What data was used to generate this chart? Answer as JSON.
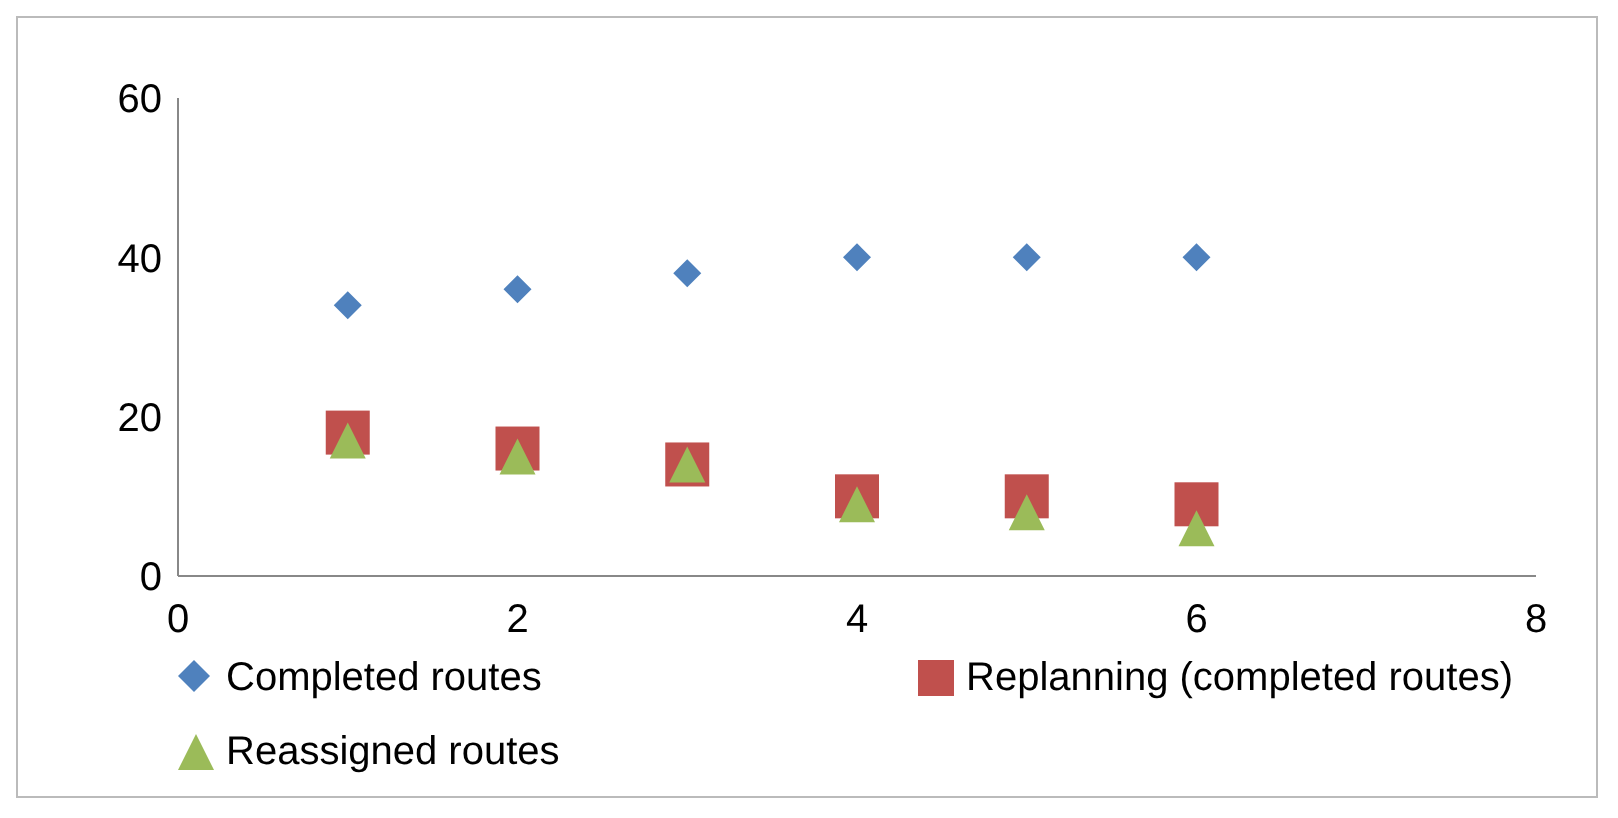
{
  "chart_data": {
    "type": "scatter",
    "x": [
      1,
      2,
      3,
      4,
      5,
      6
    ],
    "series": [
      {
        "name": "Completed routes",
        "color": "#4f81bd",
        "marker": "diamond",
        "values": [
          34,
          36,
          38,
          40,
          40,
          40
        ]
      },
      {
        "name": "Replanning (completed routes)",
        "color": "#c0504d",
        "marker": "square",
        "values": [
          18,
          16,
          14,
          10,
          10,
          9
        ]
      },
      {
        "name": "Reassigned routes",
        "color": "#9bbb59",
        "marker": "triangle",
        "values": [
          17,
          15,
          14,
          9,
          8,
          6
        ]
      }
    ],
    "xlim": [
      0,
      8
    ],
    "xticks": [
      0,
      2,
      4,
      6,
      8
    ],
    "ylim": [
      0,
      60
    ],
    "yticks": [
      0,
      20,
      40,
      60
    ],
    "grid": false,
    "legend": "bottom"
  }
}
